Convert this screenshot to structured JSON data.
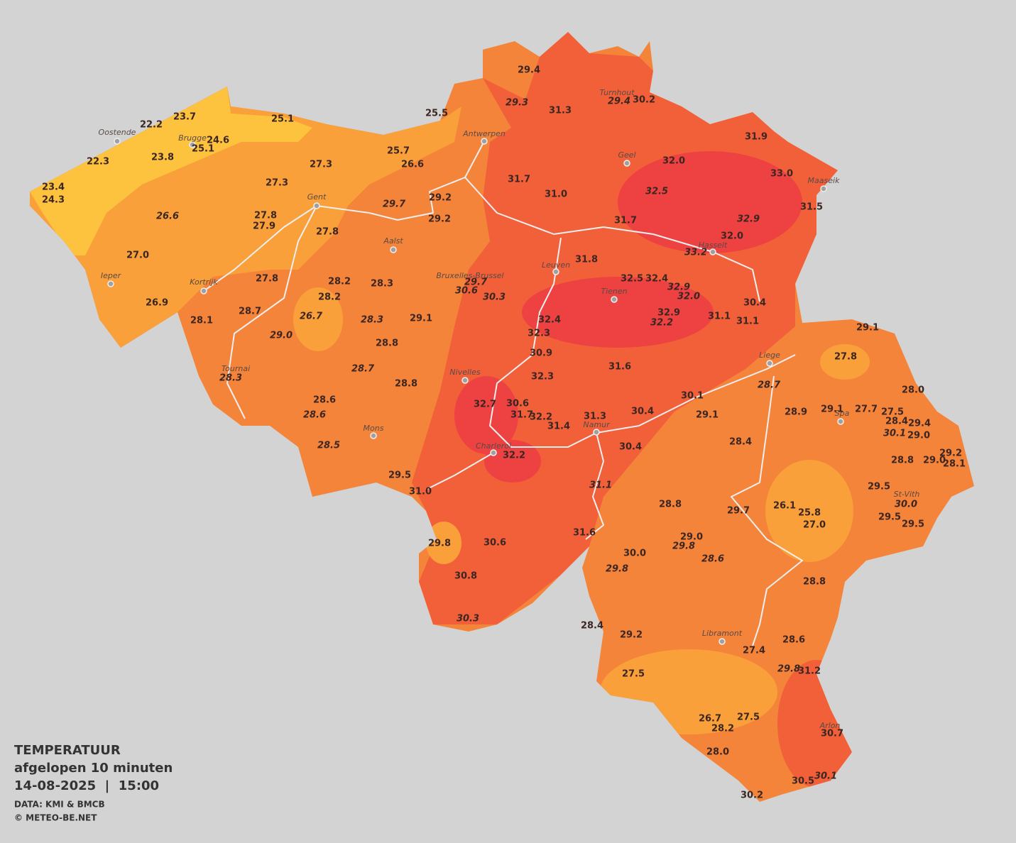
{
  "legend": {
    "title": "TEMPERATUUR",
    "period": "afgelopen 10 minuten",
    "datetime": "14-08-2025  |  15:00",
    "source": "DATA: KMI & BMCB",
    "copyright": "© METEO-BE.NET"
  },
  "cities": [
    "Oostende",
    "Brugge",
    "Antwerpen",
    "Turnhout",
    "Geel",
    "Maaseik",
    "Gent",
    "Aalst",
    "Hasselt",
    "Leuven",
    "Bruxelles-Brussel",
    "Tienen",
    "Ieper",
    "Kortrijk",
    "Liege",
    "Tournai",
    "Nivelles",
    "Spa",
    "Namur",
    "Mons",
    "Charleroi",
    "St-Vith",
    "Libramont",
    "Arlon"
  ],
  "readings": [
    {
      "value": "29.4",
      "italic": false
    },
    {
      "value": "29.3",
      "italic": true
    },
    {
      "value": "31.3",
      "italic": false
    },
    {
      "value": "29.4",
      "italic": true
    },
    {
      "value": "30.2",
      "italic": false
    },
    {
      "value": "23.7",
      "italic": false
    },
    {
      "value": "22.2",
      "italic": false
    },
    {
      "value": "25.1",
      "italic": false
    },
    {
      "value": "25.5",
      "italic": false
    },
    {
      "value": "24.6",
      "italic": false
    },
    {
      "value": "25.1",
      "italic": false
    },
    {
      "value": "31.9",
      "italic": false
    },
    {
      "value": "22.3",
      "italic": false
    },
    {
      "value": "23.8",
      "italic": false
    },
    {
      "value": "25.7",
      "italic": false
    },
    {
      "value": "26.6",
      "italic": false
    },
    {
      "value": "27.3",
      "italic": false
    },
    {
      "value": "32.0",
      "italic": false
    },
    {
      "value": "33.0",
      "italic": false
    },
    {
      "value": "31.7",
      "italic": false
    },
    {
      "value": "31.0",
      "italic": false
    },
    {
      "value": "32.5",
      "italic": true
    },
    {
      "value": "23.4",
      "italic": false
    },
    {
      "value": "24.3",
      "italic": false
    },
    {
      "value": "27.3",
      "italic": false
    },
    {
      "value": "29.2",
      "italic": false
    },
    {
      "value": "29.7",
      "italic": true
    },
    {
      "value": "31.5",
      "italic": false
    },
    {
      "value": "26.6",
      "italic": true
    },
    {
      "value": "27.8",
      "italic": false
    },
    {
      "value": "27.9",
      "italic": false
    },
    {
      "value": "29.2",
      "italic": false
    },
    {
      "value": "31.7",
      "italic": false
    },
    {
      "value": "32.9",
      "italic": true
    },
    {
      "value": "32.0",
      "italic": false
    },
    {
      "value": "27.8",
      "italic": false
    },
    {
      "value": "33.2",
      "italic": true
    },
    {
      "value": "27.0",
      "italic": false
    },
    {
      "value": "31.8",
      "italic": false
    },
    {
      "value": "32.5",
      "italic": false
    },
    {
      "value": "32.4",
      "italic": false
    },
    {
      "value": "29.7",
      "italic": true
    },
    {
      "value": "27.8",
      "italic": false
    },
    {
      "value": "28.2",
      "italic": false
    },
    {
      "value": "28.3",
      "italic": false
    },
    {
      "value": "30.6",
      "italic": true
    },
    {
      "value": "32.9",
      "italic": true
    },
    {
      "value": "30.3",
      "italic": true
    },
    {
      "value": "28.2",
      "italic": false
    },
    {
      "value": "32.0",
      "italic": true
    },
    {
      "value": "26.9",
      "italic": false
    },
    {
      "value": "30.4",
      "italic": false
    },
    {
      "value": "28.7",
      "italic": false
    },
    {
      "value": "32.9",
      "italic": false
    },
    {
      "value": "26.7",
      "italic": true
    },
    {
      "value": "28.3",
      "italic": true
    },
    {
      "value": "29.1",
      "italic": false
    },
    {
      "value": "28.1",
      "italic": false
    },
    {
      "value": "32.4",
      "italic": false
    },
    {
      "value": "31.1",
      "italic": false
    },
    {
      "value": "31.1",
      "italic": false
    },
    {
      "value": "32.2",
      "italic": true
    },
    {
      "value": "29.1",
      "italic": false
    },
    {
      "value": "32.3",
      "italic": false
    },
    {
      "value": "29.0",
      "italic": true
    },
    {
      "value": "28.8",
      "italic": false
    },
    {
      "value": "30.9",
      "italic": false
    },
    {
      "value": "27.8",
      "italic": false
    },
    {
      "value": "28.7",
      "italic": true
    },
    {
      "value": "31.6",
      "italic": false
    },
    {
      "value": "32.3",
      "italic": false
    },
    {
      "value": "28.3",
      "italic": true
    },
    {
      "value": "28.7",
      "italic": true
    },
    {
      "value": "28.8",
      "italic": false
    },
    {
      "value": "28.0",
      "italic": false
    },
    {
      "value": "30.1",
      "italic": false
    },
    {
      "value": "28.6",
      "italic": false
    },
    {
      "value": "32.7",
      "italic": false
    },
    {
      "value": "30.6",
      "italic": false
    },
    {
      "value": "29.1",
      "italic": false
    },
    {
      "value": "27.7",
      "italic": false
    },
    {
      "value": "27.5",
      "italic": false
    },
    {
      "value": "28.9",
      "italic": false
    },
    {
      "value": "28.6",
      "italic": true
    },
    {
      "value": "31.7",
      "italic": false
    },
    {
      "value": "32.2",
      "italic": false
    },
    {
      "value": "31.3",
      "italic": false
    },
    {
      "value": "30.4",
      "italic": false
    },
    {
      "value": "29.1",
      "italic": false
    },
    {
      "value": "28.4",
      "italic": false
    },
    {
      "value": "29.4",
      "italic": false
    },
    {
      "value": "31.4",
      "italic": false
    },
    {
      "value": "30.1",
      "italic": true
    },
    {
      "value": "29.0",
      "italic": false
    },
    {
      "value": "28.4",
      "italic": false
    },
    {
      "value": "28.5",
      "italic": true
    },
    {
      "value": "30.4",
      "italic": false
    },
    {
      "value": "32.2",
      "italic": false
    },
    {
      "value": "29.2",
      "italic": false
    },
    {
      "value": "28.8",
      "italic": false
    },
    {
      "value": "29.0",
      "italic": false
    },
    {
      "value": "28.1",
      "italic": false
    },
    {
      "value": "29.5",
      "italic": false
    },
    {
      "value": "31.1",
      "italic": true
    },
    {
      "value": "29.5",
      "italic": false
    },
    {
      "value": "31.0",
      "italic": false
    },
    {
      "value": "30.0",
      "italic": true
    },
    {
      "value": "28.8",
      "italic": false
    },
    {
      "value": "26.1",
      "italic": false
    },
    {
      "value": "29.7",
      "italic": false
    },
    {
      "value": "25.8",
      "italic": false
    },
    {
      "value": "29.5",
      "italic": false
    },
    {
      "value": "27.0",
      "italic": false
    },
    {
      "value": "29.5",
      "italic": false
    },
    {
      "value": "31.6",
      "italic": false
    },
    {
      "value": "29.0",
      "italic": false
    },
    {
      "value": "29.8",
      "italic": false
    },
    {
      "value": "30.6",
      "italic": false
    },
    {
      "value": "29.8",
      "italic": true
    },
    {
      "value": "30.0",
      "italic": false
    },
    {
      "value": "28.6",
      "italic": true
    },
    {
      "value": "29.8",
      "italic": true
    },
    {
      "value": "30.8",
      "italic": false
    },
    {
      "value": "28.8",
      "italic": false
    },
    {
      "value": "30.3",
      "italic": true
    },
    {
      "value": "28.4",
      "italic": false
    },
    {
      "value": "29.2",
      "italic": false
    },
    {
      "value": "28.6",
      "italic": false
    },
    {
      "value": "27.4",
      "italic": false
    },
    {
      "value": "29.8",
      "italic": true
    },
    {
      "value": "31.2",
      "italic": false
    },
    {
      "value": "27.5",
      "italic": false
    },
    {
      "value": "26.7",
      "italic": false
    },
    {
      "value": "27.5",
      "italic": false
    },
    {
      "value": "28.2",
      "italic": false
    },
    {
      "value": "30.7",
      "italic": false
    },
    {
      "value": "28.0",
      "italic": false
    },
    {
      "value": "30.5",
      "italic": false
    },
    {
      "value": "30.1",
      "italic": true
    },
    {
      "value": "30.2",
      "italic": false
    }
  ]
}
